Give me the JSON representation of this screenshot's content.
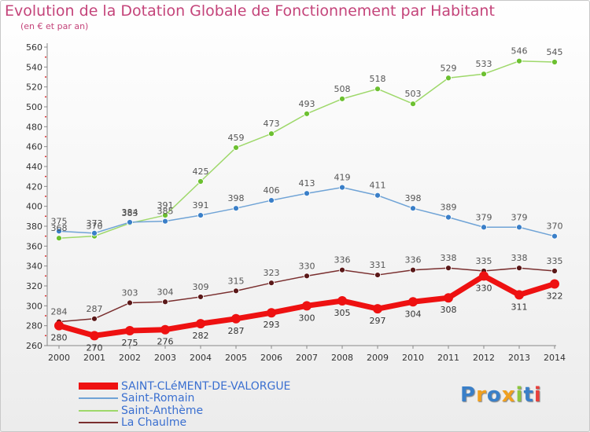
{
  "header": {
    "title": "Evolution de la Dotation Globale de Fonctionnement par Habitant",
    "subtitle": "(en € et par an)"
  },
  "logo": {
    "text": "Proxiti",
    "colors": [
      "#3a7fc8",
      "#f0a020",
      "#3a7fc8",
      "#f0a020",
      "#8ec63f",
      "#3a7fc8",
      "#e8403c"
    ]
  },
  "chart_data": {
    "type": "line",
    "title": "Evolution de la Dotation Globale de Fonctionnement par Habitant",
    "subtitle": "(en € et par an)",
    "xlabel": "",
    "ylabel": "",
    "x": [
      "2000",
      "2001",
      "2002",
      "2003",
      "2004",
      "2005",
      "2006",
      "2007",
      "2008",
      "2009",
      "2010",
      "2011",
      "2012",
      "2013",
      "2014"
    ],
    "ylim": [
      260,
      560
    ],
    "yticks": [
      260,
      280,
      300,
      320,
      340,
      360,
      380,
      400,
      420,
      440,
      460,
      480,
      500,
      520,
      540,
      560
    ],
    "grid": false,
    "legend_position": "bottom-left",
    "series": [
      {
        "name": "SAINT-CLéMENT-DE-VALORGUE",
        "color": "#ee1111",
        "marker": "#ee1111",
        "width": 7,
        "radius": 6,
        "label_color": "#333333",
        "values": [
          280,
          270,
          275,
          276,
          282,
          287,
          293,
          300,
          305,
          297,
          304,
          308,
          330,
          311,
          322
        ]
      },
      {
        "name": "Saint-Romain",
        "color": "#6fa3d6",
        "marker": "#3a7fc8",
        "width": 1.5,
        "radius": 3.5,
        "label_color": "#555555",
        "values": [
          375,
          373,
          384,
          385,
          391,
          398,
          406,
          413,
          419,
          411,
          398,
          389,
          379,
          379,
          370
        ]
      },
      {
        "name": "Saint-Anthème",
        "color": "#9ed86a",
        "marker": "#6cc030",
        "width": 1.5,
        "radius": 3.5,
        "label_color": "#555555",
        "values": [
          368,
          370,
          383,
          391,
          425,
          459,
          473,
          493,
          508,
          518,
          503,
          529,
          533,
          546,
          545
        ]
      },
      {
        "name": "La Chaulme",
        "color": "#7a2f2f",
        "marker": "#5a1818",
        "width": 1.5,
        "radius": 3.5,
        "label_color": "#555555",
        "values": [
          284,
          287,
          303,
          304,
          309,
          315,
          323,
          330,
          336,
          331,
          336,
          338,
          335,
          338,
          335
        ]
      }
    ]
  }
}
